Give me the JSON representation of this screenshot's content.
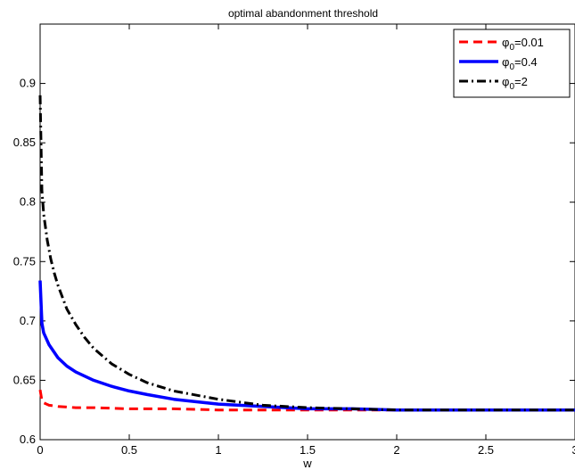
{
  "chart_data": {
    "type": "line",
    "title": "optimal abandonment threshold",
    "xlabel": "w",
    "ylabel": "",
    "xlim": [
      0,
      3
    ],
    "ylim": [
      0.6,
      0.95
    ],
    "xticks": [
      "0",
      "0.5",
      "1",
      "1.5",
      "2",
      "2.5",
      "3"
    ],
    "yticks": [
      "0.6",
      "0.65",
      "0.7",
      "0.75",
      "0.8",
      "0.85",
      "0.9"
    ],
    "grid": false,
    "legend_position": "top-right",
    "series": [
      {
        "name": "φ₀=0.01",
        "legend_main": "φ",
        "legend_sub": "0",
        "legend_tail": "=0.01",
        "color": "#ff0000",
        "style": "dashed",
        "x": [
          0,
          0.01,
          0.02,
          0.05,
          0.1,
          0.2,
          0.3,
          0.5,
          0.75,
          1.0,
          1.5,
          2.0,
          2.5,
          3.0
        ],
        "y": [
          0.642,
          0.633,
          0.631,
          0.629,
          0.628,
          0.627,
          0.627,
          0.626,
          0.626,
          0.625,
          0.625,
          0.625,
          0.625,
          0.625
        ]
      },
      {
        "name": "φ₀=0.4",
        "legend_main": "φ",
        "legend_sub": "0",
        "legend_tail": "=0.4",
        "color": "#0000ff",
        "style": "solid",
        "x": [
          0,
          0.01,
          0.02,
          0.05,
          0.1,
          0.15,
          0.2,
          0.3,
          0.4,
          0.5,
          0.6,
          0.75,
          1.0,
          1.25,
          1.5,
          1.75,
          2.0,
          2.5,
          3.0
        ],
        "y": [
          0.734,
          0.698,
          0.69,
          0.68,
          0.669,
          0.662,
          0.657,
          0.65,
          0.645,
          0.641,
          0.638,
          0.634,
          0.63,
          0.628,
          0.626,
          0.626,
          0.625,
          0.625,
          0.625
        ]
      },
      {
        "name": "φ₀=2",
        "legend_main": "φ",
        "legend_sub": "0",
        "legend_tail": "=2",
        "color": "#000000",
        "style": "dashdot",
        "x": [
          0,
          0.005,
          0.01,
          0.02,
          0.04,
          0.06,
          0.08,
          0.1,
          0.15,
          0.2,
          0.25,
          0.3,
          0.4,
          0.5,
          0.6,
          0.75,
          1.0,
          1.25,
          1.5,
          1.75,
          2.0,
          2.5,
          3.0
        ],
        "y": [
          0.89,
          0.85,
          0.81,
          0.79,
          0.768,
          0.752,
          0.74,
          0.73,
          0.71,
          0.697,
          0.686,
          0.677,
          0.664,
          0.655,
          0.648,
          0.641,
          0.634,
          0.629,
          0.627,
          0.626,
          0.625,
          0.625,
          0.625
        ]
      }
    ]
  }
}
